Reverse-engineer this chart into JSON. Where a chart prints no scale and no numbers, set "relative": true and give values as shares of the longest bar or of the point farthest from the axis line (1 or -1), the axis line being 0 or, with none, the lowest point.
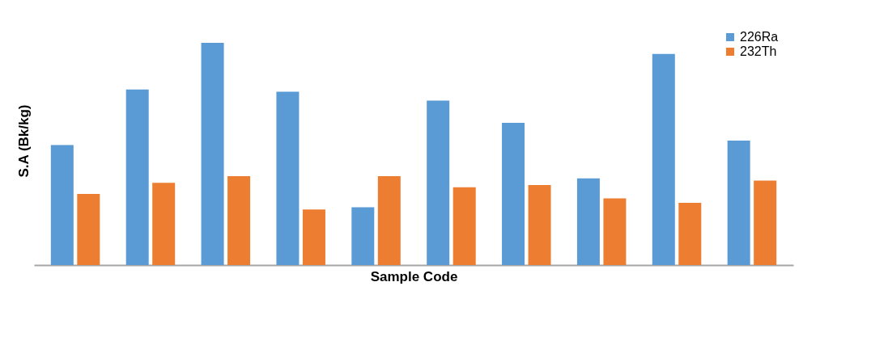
{
  "chart_data": {
    "type": "bar",
    "relative": true,
    "xlabel": "Sample Code",
    "ylabel": "S.A (Bk/kg)",
    "categories": [
      null,
      null,
      null,
      null,
      null,
      null,
      null,
      null,
      null,
      null
    ],
    "series": [
      {
        "name": "226Ra",
        "color": "#5b9bd5",
        "values": [
          0.54,
          0.79,
          1,
          0.78,
          0.26,
          0.74,
          0.64,
          0.39,
          0.95,
          0.56
        ]
      },
      {
        "name": "232Th",
        "color": "#ed7d31",
        "values": [
          0.32,
          0.37,
          0.4,
          0.25,
          0.4,
          0.35,
          0.36,
          0.3,
          0.28,
          0.38
        ]
      }
    ],
    "legend": "top right",
    "grid": false
  }
}
